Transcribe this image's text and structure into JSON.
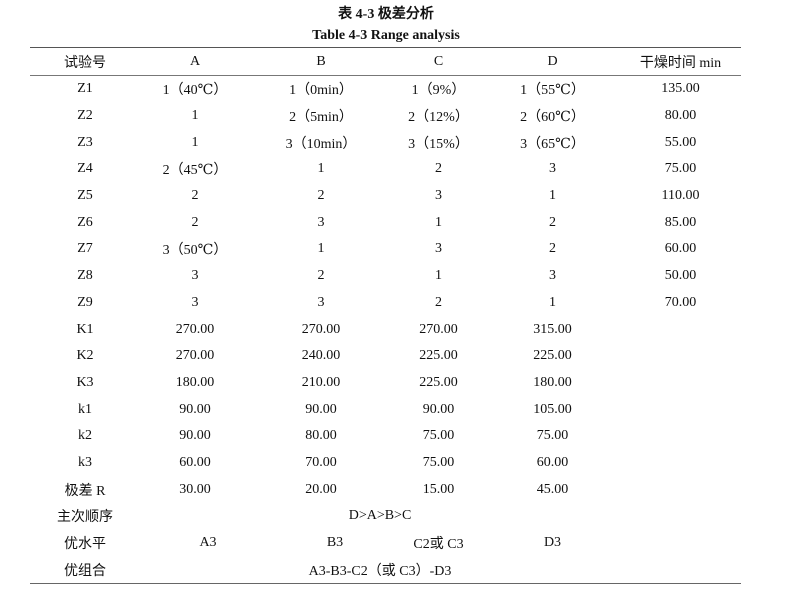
{
  "caption_cn": "表 4-3  极差分析",
  "caption_en": "Table 4-3 Range analysis",
  "headers": [
    "试验号",
    "A",
    "B",
    "C",
    "D",
    "干燥时间 min"
  ],
  "rows": [
    [
      "Z1",
      "1（40℃）",
      "1（0min）",
      "1（9%）",
      "1（55℃）",
      "135.00"
    ],
    [
      "Z2",
      "1",
      "2（5min）",
      "2（12%）",
      "2（60℃）",
      "80.00"
    ],
    [
      "Z3",
      "1",
      "3（10min）",
      "3（15%）",
      "3（65℃）",
      "55.00"
    ],
    [
      "Z4",
      "2（45℃）",
      "1",
      "2",
      "3",
      "75.00"
    ],
    [
      "Z5",
      "2",
      "2",
      "3",
      "1",
      "110.00"
    ],
    [
      "Z6",
      "2",
      "3",
      "1",
      "2",
      "85.00"
    ],
    [
      "Z7",
      "3（50℃）",
      "1",
      "3",
      "2",
      "60.00"
    ],
    [
      "Z8",
      "3",
      "2",
      "1",
      "3",
      "50.00"
    ],
    [
      "Z9",
      "3",
      "3",
      "2",
      "1",
      "70.00"
    ],
    [
      "K1",
      "270.00",
      "270.00",
      "270.00",
      "315.00",
      ""
    ],
    [
      "K2",
      "270.00",
      "240.00",
      "225.00",
      "225.00",
      ""
    ],
    [
      "K3",
      "180.00",
      "210.00",
      "225.00",
      "180.00",
      ""
    ],
    [
      "k1",
      "90.00",
      "90.00",
      "90.00",
      "105.00",
      ""
    ],
    [
      "k2",
      "90.00",
      "80.00",
      "75.00",
      "75.00",
      ""
    ],
    [
      "k3",
      "60.00",
      "70.00",
      "75.00",
      "60.00",
      ""
    ],
    [
      "极差 R",
      "30.00",
      "20.00",
      "15.00",
      "45.00",
      ""
    ]
  ],
  "order": {
    "label": "主次顺序",
    "value": "D>A>B>C"
  },
  "optimal_level": {
    "label": "优水平",
    "values": [
      "A3",
      "B3",
      "C2或 C3",
      "D3"
    ]
  },
  "optimal_combo": {
    "label": "优组合",
    "value": "A3-B3-C2（或 C3）-D3"
  }
}
